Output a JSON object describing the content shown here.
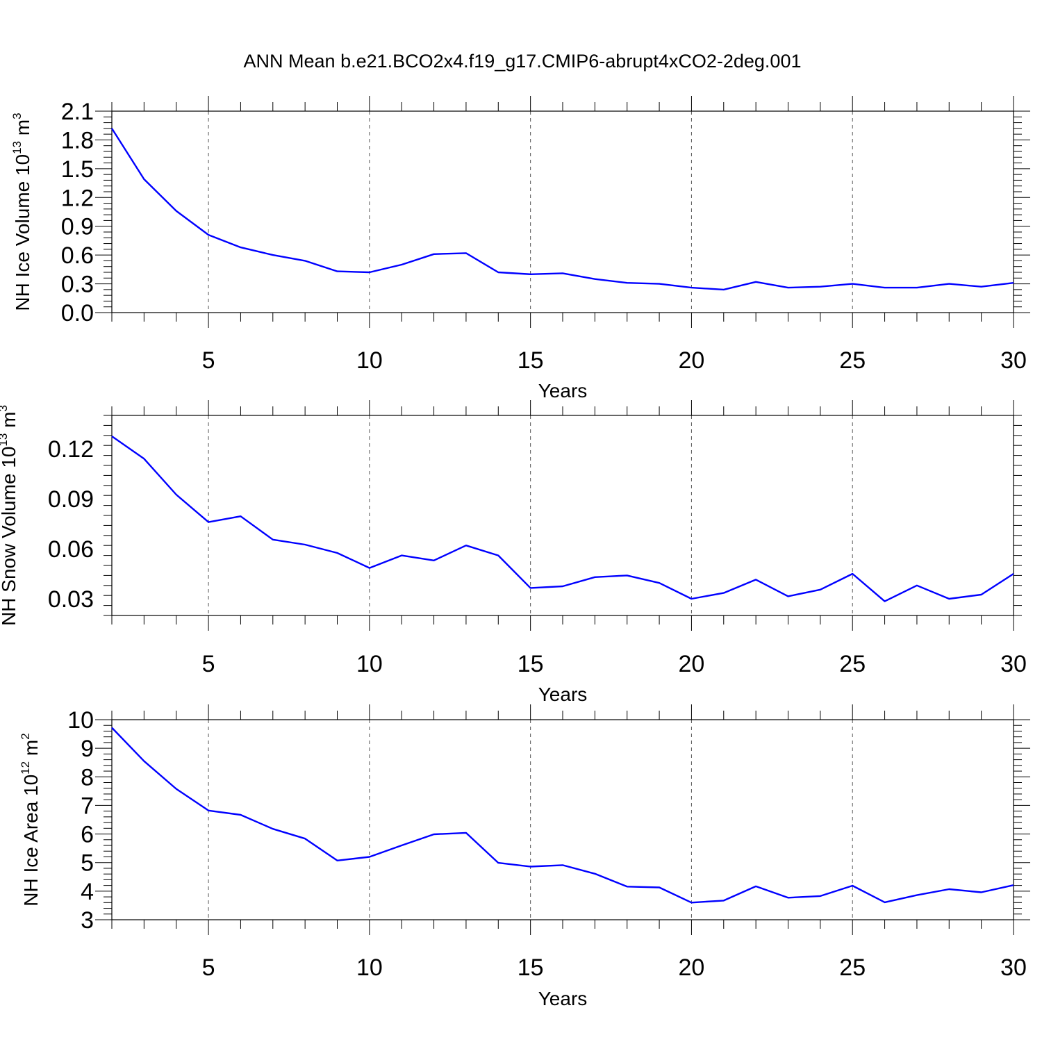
{
  "title": "ANN Mean b.e21.BCO2x4.f19_g17.CMIP6-abrupt4xCO2-2deg.001",
  "colors": {
    "line": "#0000ff",
    "axis": "#000000",
    "grid": "#555555"
  },
  "chart_data": [
    {
      "type": "line",
      "ylabel": {
        "text": "NH Ice Volume 10",
        "sup": "13",
        "unit": " m",
        "unit_sup": "3"
      },
      "xlabel": "Years",
      "xlim": [
        2,
        30
      ],
      "ylim": [
        0,
        2.1
      ],
      "xticks": [
        5,
        10,
        15,
        20,
        25,
        30
      ],
      "yticks": [
        0,
        0.3,
        0.6,
        0.9,
        1.2,
        1.5,
        1.8,
        2.1
      ],
      "ytick_labels": [
        "0.0",
        "0.3",
        "0.6",
        "0.9",
        "1.2",
        "1.5",
        "1.8",
        "2.1"
      ],
      "grid": "vertical dashed at major x ticks",
      "series": [
        {
          "x": [
            2,
            3,
            4,
            5,
            6,
            7,
            8,
            9,
            10,
            11,
            12,
            13,
            14,
            15,
            16,
            17,
            18,
            19,
            20,
            21,
            22,
            23,
            24,
            25,
            26,
            27,
            28,
            29,
            30
          ],
          "values": [
            1.92,
            1.39,
            1.06,
            0.81,
            0.68,
            0.6,
            0.54,
            0.43,
            0.42,
            0.5,
            0.61,
            0.62,
            0.42,
            0.4,
            0.41,
            0.35,
            0.31,
            0.3,
            0.26,
            0.24,
            0.32,
            0.26,
            0.27,
            0.3,
            0.26,
            0.26,
            0.3,
            0.27,
            0.31
          ]
        }
      ]
    },
    {
      "type": "line",
      "ylabel": {
        "text": "NH Snow Volume 10",
        "sup": "13",
        "unit": " m",
        "unit_sup": "3"
      },
      "xlabel": "Years",
      "xlim": [
        2,
        30
      ],
      "ylim": [
        0.02,
        0.14
      ],
      "xticks": [
        5,
        10,
        15,
        20,
        25,
        30
      ],
      "yticks": [
        0.03,
        0.06,
        0.09,
        0.12
      ],
      "ytick_labels": [
        "0.03",
        "0.06",
        "0.09",
        "0.12"
      ],
      "grid": "vertical dashed at major x ticks",
      "series": [
        {
          "x": [
            2,
            3,
            4,
            5,
            6,
            7,
            8,
            9,
            10,
            11,
            12,
            13,
            14,
            15,
            16,
            17,
            18,
            19,
            20,
            21,
            22,
            23,
            24,
            25,
            26,
            27,
            28,
            29,
            30
          ],
          "values": [
            0.1275,
            0.114,
            0.0925,
            0.076,
            0.0795,
            0.0655,
            0.0625,
            0.0575,
            0.0485,
            0.056,
            0.053,
            0.062,
            0.056,
            0.0365,
            0.0375,
            0.043,
            0.044,
            0.0395,
            0.03,
            0.0335,
            0.0415,
            0.0315,
            0.0355,
            0.045,
            0.0285,
            0.038,
            0.03,
            0.0325,
            0.045
          ]
        }
      ]
    },
    {
      "type": "line",
      "ylabel": {
        "text": "NH Ice Area 10",
        "sup": "12",
        "unit": " m",
        "unit_sup": "2"
      },
      "xlabel": "Years",
      "xlim": [
        2,
        30
      ],
      "ylim": [
        3,
        10
      ],
      "xticks": [
        5,
        10,
        15,
        20,
        25,
        30
      ],
      "yticks": [
        3,
        4,
        5,
        6,
        7,
        8,
        9,
        10
      ],
      "ytick_labels": [
        "3",
        "4",
        "5",
        "6",
        "7",
        "8",
        "9",
        "10"
      ],
      "grid": "vertical dashed at major x ticks",
      "series": [
        {
          "x": [
            2,
            3,
            4,
            5,
            6,
            7,
            8,
            9,
            10,
            11,
            12,
            13,
            14,
            15,
            16,
            17,
            18,
            19,
            20,
            21,
            22,
            23,
            24,
            25,
            26,
            27,
            28,
            29,
            30
          ],
          "values": [
            9.72,
            8.55,
            7.58,
            6.82,
            6.67,
            6.18,
            5.84,
            5.07,
            5.2,
            5.6,
            5.99,
            6.04,
            4.99,
            4.86,
            4.91,
            4.61,
            4.16,
            4.13,
            3.6,
            3.67,
            4.17,
            3.77,
            3.83,
            4.19,
            3.61,
            3.86,
            4.07,
            3.96,
            4.21
          ]
        }
      ]
    }
  ]
}
